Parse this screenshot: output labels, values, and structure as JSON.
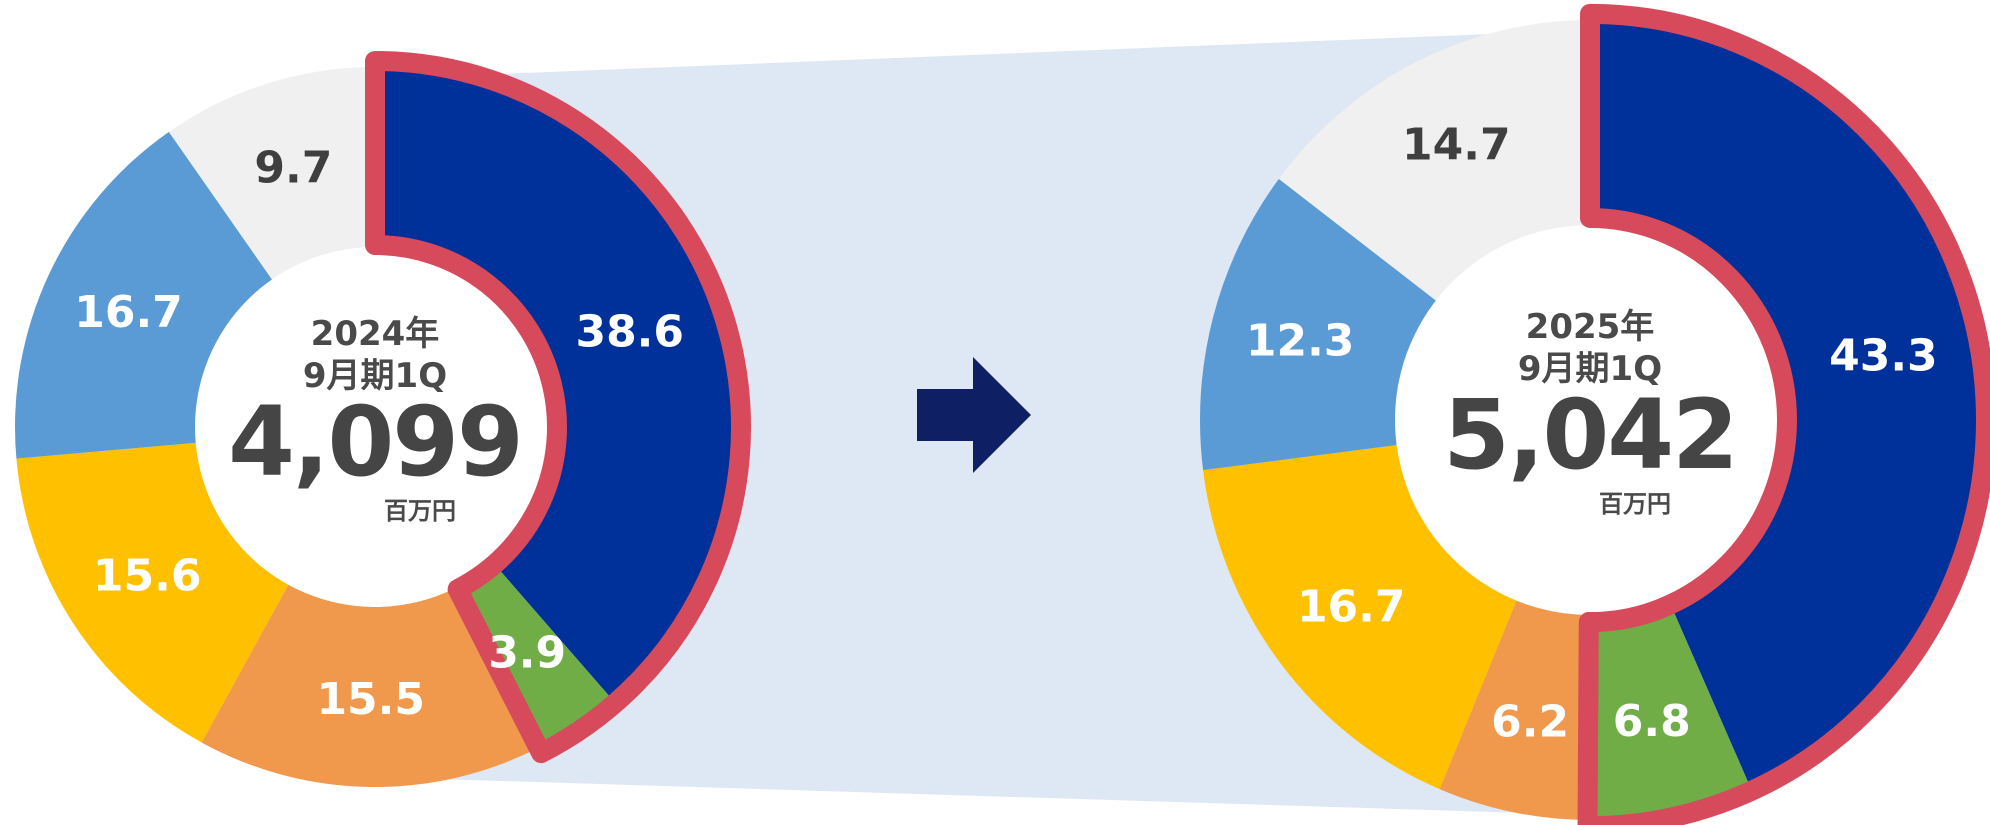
{
  "colors": {
    "highlight_outline": "#D64A5C",
    "connector_band": "#DEE8F4",
    "arrow": "#0E1F63",
    "label_light": "#FFFFFF",
    "label_dark": "#3F3F3F"
  },
  "arrow_icon": "right-arrow-icon",
  "chart_data": [
    {
      "type": "pie",
      "donut": true,
      "period_line1": "2024年",
      "period_line2": "9月期1Q",
      "total": "4,099",
      "unit": "百万円",
      "slices": [
        {
          "label": "38.6",
          "value": 38.6,
          "color": "#00309A",
          "label_color": "#FFFFFF",
          "highlight": true
        },
        {
          "label": "3.9",
          "value": 3.9,
          "color": "#70AD47",
          "label_color": "#FFFFFF",
          "highlight": true
        },
        {
          "label": "15.5",
          "value": 15.5,
          "color": "#F0994D",
          "label_color": "#FFFFFF",
          "highlight": false
        },
        {
          "label": "15.6",
          "value": 15.6,
          "color": "#FFC000",
          "label_color": "#FFFFFF",
          "highlight": false
        },
        {
          "label": "16.7",
          "value": 16.7,
          "color": "#5B9BD5",
          "label_color": "#FFFFFF",
          "highlight": false
        },
        {
          "label": "9.7",
          "value": 9.7,
          "color": "#F0F0F0",
          "label_color": "#3F3F3F",
          "highlight": false
        }
      ]
    },
    {
      "type": "pie",
      "donut": true,
      "period_line1": "2025年",
      "period_line2": "9月期1Q",
      "total": "5,042",
      "unit": "百万円",
      "slices": [
        {
          "label": "43.3",
          "value": 43.3,
          "color": "#00309A",
          "label_color": "#FFFFFF",
          "highlight": true
        },
        {
          "label": "6.8",
          "value": 6.8,
          "color": "#70AD47",
          "label_color": "#FFFFFF",
          "highlight": true
        },
        {
          "label": "6.2",
          "value": 6.2,
          "color": "#F0994D",
          "label_color": "#FFFFFF",
          "highlight": false
        },
        {
          "label": "16.7",
          "value": 16.7,
          "color": "#FFC000",
          "label_color": "#FFFFFF",
          "highlight": false
        },
        {
          "label": "12.3",
          "value": 12.3,
          "color": "#5B9BD5",
          "label_color": "#FFFFFF",
          "highlight": false
        },
        {
          "label": "14.7",
          "value": 14.7,
          "color": "#F0F0F0",
          "label_color": "#3F3F3F",
          "highlight": false
        }
      ]
    }
  ]
}
